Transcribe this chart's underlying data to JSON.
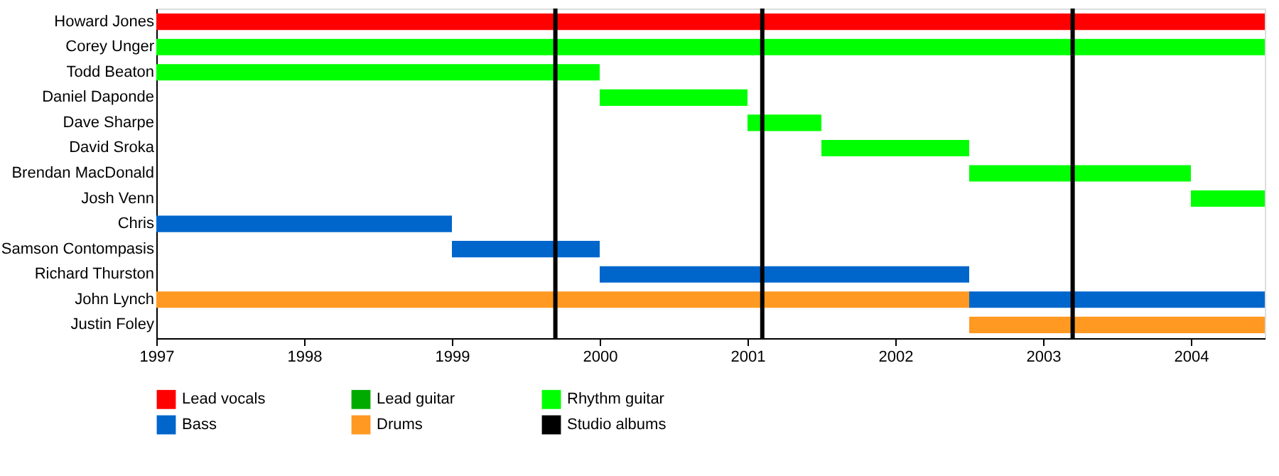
{
  "chart_data": {
    "type": "bar",
    "orientation": "horizontal",
    "categories": [
      "Howard Jones",
      "Corey Unger",
      "Todd Beaton",
      "Daniel Daponde",
      "Dave Sharpe",
      "David Sroka",
      "Brendan MacDonald",
      "Josh Venn",
      "Chris",
      "Samson Contompasis",
      "Richard Thurston",
      "John Lynch",
      "Justin Foley"
    ],
    "series": [
      {
        "name": "Lead vocals",
        "color": "#ff0000",
        "values": [
          7.5,
          null,
          null,
          null,
          null,
          null,
          null,
          null,
          null,
          null,
          null,
          null,
          null
        ],
        "base": [
          1997,
          null,
          null,
          null,
          null,
          null,
          null,
          null,
          null,
          null,
          null,
          null,
          null
        ]
      },
      {
        "name": "Lead guitar",
        "color": "#00aa00",
        "values": [
          null,
          null,
          null,
          null,
          null,
          null,
          null,
          null,
          null,
          null,
          null,
          null,
          null
        ],
        "base": [
          null,
          null,
          null,
          null,
          null,
          null,
          null,
          null,
          null,
          null,
          null,
          null,
          null
        ]
      },
      {
        "name": "Rhythm guitar",
        "color": "#00ff00",
        "values": [
          null,
          7.5,
          3,
          1,
          0.5,
          1,
          1.5,
          0.5,
          null,
          null,
          null,
          null,
          null
        ],
        "base": [
          null,
          1997,
          1997,
          2000,
          2001,
          2001.5,
          2002.5,
          2004,
          null,
          null,
          null,
          null,
          null
        ]
      },
      {
        "name": "Bass",
        "color": "#0066cc",
        "values": [
          null,
          null,
          null,
          null,
          null,
          null,
          null,
          null,
          2,
          1,
          2.5,
          2,
          null
        ],
        "base": [
          null,
          null,
          null,
          null,
          null,
          null,
          null,
          null,
          1997,
          1999,
          2000,
          2002.5,
          null
        ]
      },
      {
        "name": "Drums",
        "color": "#ff9922",
        "values": [
          null,
          null,
          null,
          null,
          null,
          null,
          null,
          null,
          null,
          null,
          null,
          5.5,
          2
        ],
        "base": [
          null,
          null,
          null,
          null,
          null,
          null,
          null,
          null,
          null,
          null,
          null,
          1997,
          2002.5
        ]
      }
    ],
    "ref_lines": [
      {
        "axis": "x",
        "value": 1999.7,
        "label": "Studio albums",
        "color": "#000000"
      },
      {
        "axis": "x",
        "value": 2001.1,
        "color": "#000000"
      },
      {
        "axis": "x",
        "value": 2003.2,
        "color": "#000000"
      }
    ],
    "xlim": [
      1997,
      2004.5
    ],
    "xticks": [
      1997,
      1998,
      1999,
      2000,
      2001,
      2002,
      2003,
      2004
    ],
    "grid": false,
    "legend": "bottom left"
  }
}
